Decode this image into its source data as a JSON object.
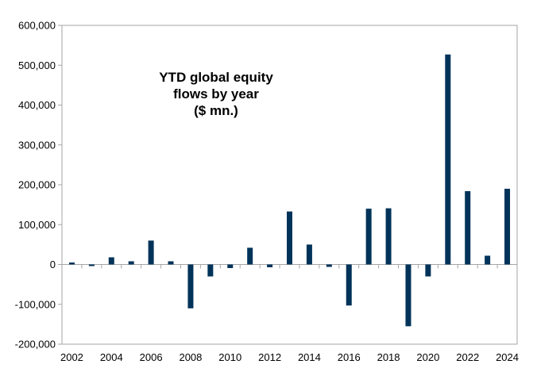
{
  "chart_data": {
    "type": "bar",
    "title_lines": [
      "YTD global equity",
      "flows by year",
      "($ mn.)"
    ],
    "xlabel": "",
    "ylabel": "",
    "ylim": [
      -200000,
      600000
    ],
    "yticks": [
      600000,
      500000,
      400000,
      300000,
      200000,
      100000,
      0,
      -100000,
      -200000
    ],
    "ytick_labels": [
      "600,000",
      "500,000",
      "400,000",
      "300,000",
      "200,000",
      "100,000",
      "0",
      "-100,000",
      "-200,000"
    ],
    "xtick_labels": [
      "2002",
      "2004",
      "2006",
      "2008",
      "2010",
      "2012",
      "2014",
      "2016",
      "2018",
      "2020",
      "2022",
      "2024"
    ],
    "categories": [
      "2002",
      "2003",
      "2004",
      "2005",
      "2006",
      "2007",
      "2008",
      "2009",
      "2010",
      "2011",
      "2012",
      "2013",
      "2014",
      "2015",
      "2016",
      "2017",
      "2018",
      "2019",
      "2020",
      "2021",
      "2022",
      "2023",
      "2024"
    ],
    "values": [
      5000,
      -4000,
      18000,
      8000,
      60000,
      8000,
      -110000,
      -30000,
      -9000,
      42000,
      -7000,
      133000,
      50000,
      -6000,
      -103000,
      140000,
      141000,
      -155000,
      -30000,
      527000,
      184000,
      22000,
      190000
    ],
    "bar_color": "#003359",
    "grid": false,
    "legend": "none"
  }
}
